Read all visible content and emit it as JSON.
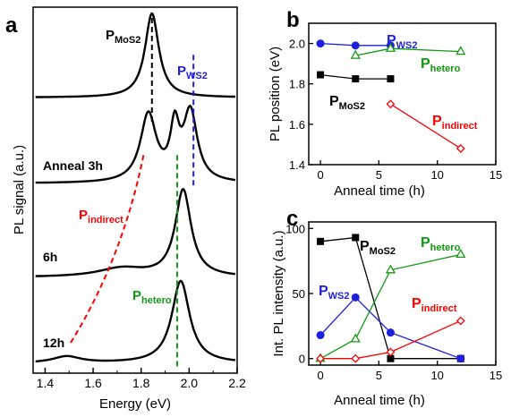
{
  "colors": {
    "black": "#000000",
    "red": "#ff0000",
    "blue": "#1f1fe0",
    "green": "#119911"
  },
  "chart_data": [
    {
      "panel": "a",
      "type": "line",
      "xlabel": "Energy (eV)",
      "ylabel": "PL signal (a.u.)",
      "xlim": [
        1.35,
        2.2
      ],
      "xticks": [
        "1.4",
        "1.6",
        "1.8",
        "2.0",
        "2.2"
      ],
      "yticks_shown": false,
      "spectra": [
        {
          "label": "",
          "peaks": [
            {
              "x": 1.845,
              "height": 1.0,
              "width": 0.035
            }
          ]
        },
        {
          "label": "Anneal 3h",
          "peaks": [
            {
              "x": 1.83,
              "height": 0.82,
              "width": 0.04
            },
            {
              "x": 1.94,
              "height": 0.6,
              "width": 0.022
            },
            {
              "x": 2.005,
              "height": 0.84,
              "width": 0.035
            }
          ]
        },
        {
          "label": "6h",
          "peaks": [
            {
              "x": 1.975,
              "height": 1.0,
              "width": 0.04
            },
            {
              "x": 1.72,
              "height": 0.1,
              "width": 0.12
            }
          ]
        },
        {
          "label": "12h",
          "peaks": [
            {
              "x": 1.965,
              "height": 1.0,
              "width": 0.045
            },
            {
              "x": 1.49,
              "height": 0.08,
              "width": 0.07
            }
          ]
        }
      ],
      "guides": [
        {
          "name": "P",
          "sub": "MoS2",
          "color": "black",
          "points": [
            [
              1.845,
              0
            ],
            [
              1.845,
              1
            ]
          ]
        },
        {
          "name": "P",
          "sub": "WS2",
          "color": "blue",
          "points": [
            [
              2.018,
              0.35
            ],
            [
              2.018,
              1.6
            ]
          ]
        },
        {
          "name": "P",
          "sub": "hetero",
          "color": "green",
          "points": [
            [
              1.95,
              1.3
            ],
            [
              1.95,
              3.3
            ]
          ]
        },
        {
          "name": "P",
          "sub": "indirect",
          "color": "red",
          "points": [
            [
              1.81,
              1.3
            ],
            [
              1.72,
              2.3
            ],
            [
              1.5,
              3.1
            ]
          ]
        }
      ],
      "labels": [
        {
          "name": "P",
          "sub": "MoS2",
          "color": "black"
        },
        {
          "name": "P",
          "sub": "WS2",
          "color": "blue"
        },
        {
          "name": "P",
          "sub": "indirect",
          "color": "red"
        },
        {
          "name": "P",
          "sub": "hetero",
          "color": "green"
        }
      ]
    },
    {
      "panel": "b",
      "type": "line",
      "xlabel": "Anneal time (h)",
      "ylabel": "PL position (eV)",
      "xlim": [
        -1,
        15
      ],
      "ylim": [
        1.4,
        2.1
      ],
      "xticks": [
        "0",
        "5",
        "10",
        "15"
      ],
      "yticks": [
        "1.4",
        "1.6",
        "1.8",
        "2.0"
      ],
      "series": [
        {
          "name": "P",
          "sub": "WS2",
          "color": "blue",
          "marker": "circle-filled",
          "x": [
            0,
            3,
            6
          ],
          "y": [
            2.0,
            1.99,
            1.99
          ]
        },
        {
          "name": "P",
          "sub": "hetero",
          "color": "green",
          "marker": "triangle-open",
          "x": [
            3,
            6,
            12
          ],
          "y": [
            1.94,
            1.975,
            1.96
          ]
        },
        {
          "name": "P",
          "sub": "MoS2",
          "color": "black",
          "marker": "square-filled",
          "x": [
            0,
            3,
            6
          ],
          "y": [
            1.845,
            1.825,
            1.825
          ]
        },
        {
          "name": "P",
          "sub": "indirect",
          "color": "red",
          "marker": "diamond-open",
          "x": [
            6,
            12
          ],
          "y": [
            1.7,
            1.48
          ]
        }
      ]
    },
    {
      "panel": "c",
      "type": "line",
      "xlabel": "Anneal time (h)",
      "ylabel": "Int. PL intensity (a.u.)",
      "xlim": [
        -1,
        15
      ],
      "ylim": [
        -5,
        105
      ],
      "xticks": [
        "0",
        "5",
        "10",
        "15"
      ],
      "yticks": [
        "0",
        "50",
        "100"
      ],
      "series": [
        {
          "name": "P",
          "sub": "MoS2",
          "color": "black",
          "marker": "square-filled",
          "x": [
            0,
            3,
            6,
            12
          ],
          "y": [
            90,
            93,
            0,
            0
          ]
        },
        {
          "name": "P",
          "sub": "WS2",
          "color": "blue",
          "marker": "circle-filled",
          "x": [
            0,
            3,
            6,
            12
          ],
          "y": [
            18,
            47,
            20,
            0
          ]
        },
        {
          "name": "P",
          "sub": "hetero",
          "color": "green",
          "marker": "triangle-open",
          "x": [
            0,
            3,
            6,
            12
          ],
          "y": [
            0,
            15,
            68,
            80
          ]
        },
        {
          "name": "P",
          "sub": "indirect",
          "color": "red",
          "marker": "diamond-open",
          "x": [
            0,
            3,
            6,
            12
          ],
          "y": [
            0,
            0,
            5,
            29
          ]
        }
      ]
    }
  ]
}
